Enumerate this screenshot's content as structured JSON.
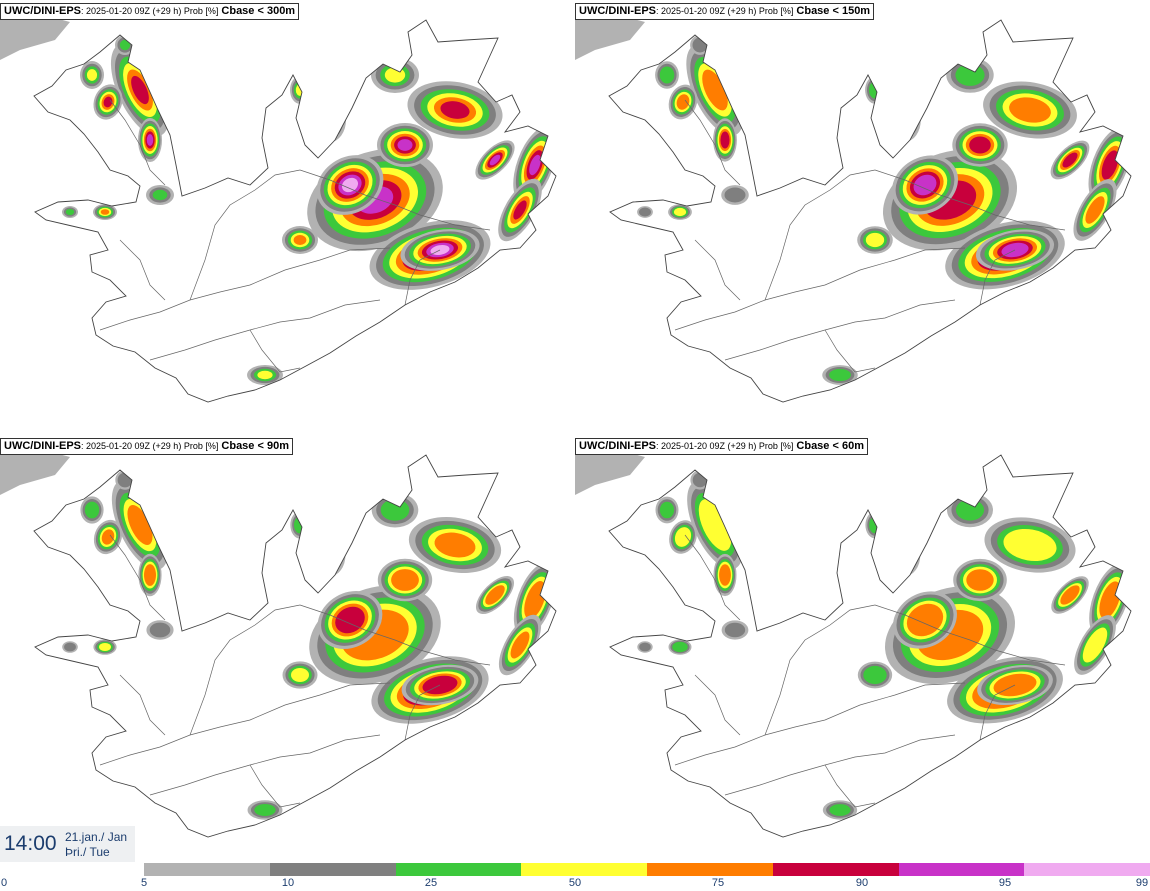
{
  "panels": [
    {
      "model": "UWC/DINI-EPS",
      "meta": ": 2025-01-20 09Z (+29 h) Prob [%]",
      "param": "Cbase < 300m"
    },
    {
      "model": "UWC/DINI-EPS",
      "meta": ": 2025-01-20 09Z (+29 h) Prob [%]",
      "param": "Cbase < 150m"
    },
    {
      "model": "UWC/DINI-EPS",
      "meta": ": 2025-01-20 09Z (+29 h) Prob [%]",
      "param": "Cbase < 90m"
    },
    {
      "model": "UWC/DINI-EPS",
      "meta": ": 2025-01-20 09Z (+29 h) Prob [%]",
      "param": "Cbase < 60m"
    }
  ],
  "valid_time": {
    "time": "14:00",
    "date_line1": "21.jan./ Jan",
    "date_line2": "Þri./ Tue"
  },
  "legend": {
    "ticks": [
      "0",
      "5",
      "10",
      "25",
      "50",
      "75",
      "90",
      "95",
      "99"
    ],
    "colors": [
      "#b2b2b2",
      "#7f7f7f",
      "#3cc83c",
      "#ffff32",
      "#ff7d00",
      "#c8003c",
      "#c832c8",
      "#f0aaf0"
    ]
  },
  "map_colors": {
    "coast": "#444444",
    "roads": "#666666",
    "p5": "#b2b2b2",
    "p10": "#7f7f7f",
    "p25": "#3cc83c",
    "p50": "#ffff32",
    "p75": "#ff7d00",
    "p90": "#c8003c",
    "p95": "#c832c8",
    "p99": "#f0aaf0"
  }
}
